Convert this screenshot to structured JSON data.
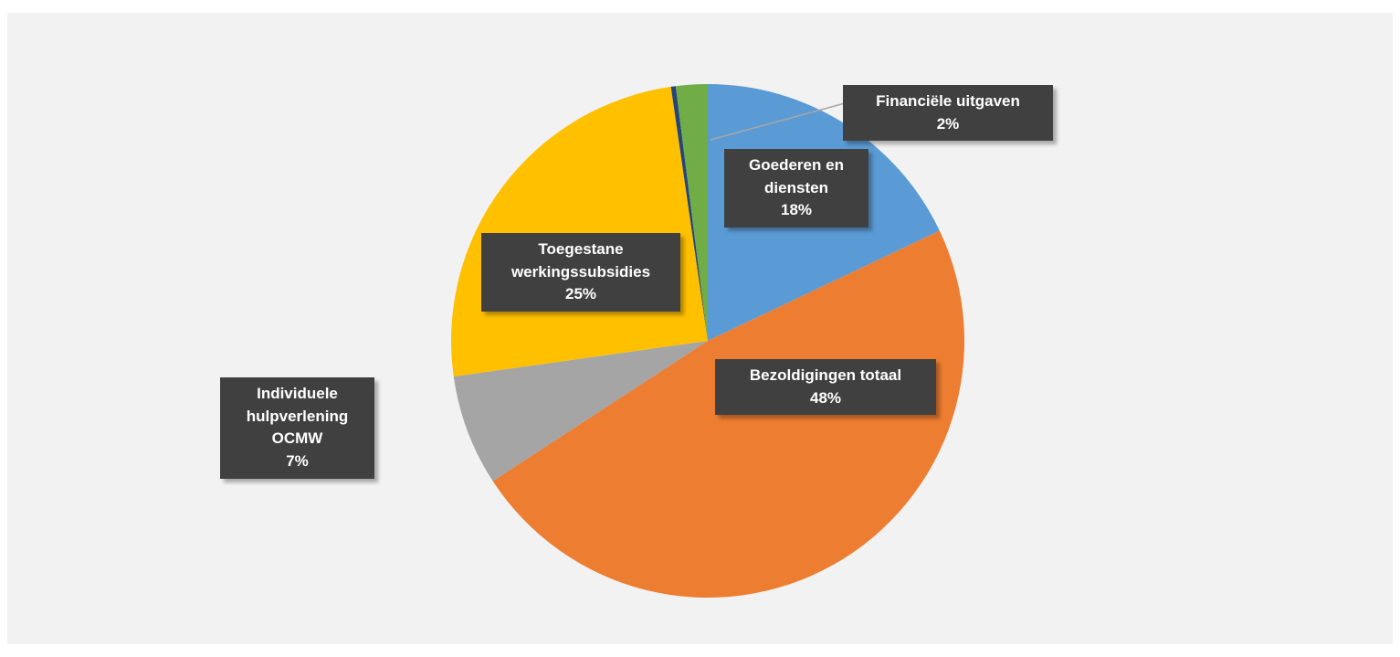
{
  "chart_data": {
    "type": "pie",
    "categories": [
      "Goederen en diensten",
      "Bezoldigingen totaal",
      "Individuele hulpverlening OCMW",
      "Toegestane werkingssubsidies",
      null,
      "Financiële uitgaven"
    ],
    "values": [
      18,
      48,
      7,
      25,
      0.3,
      2
    ],
    "value_labels": [
      "18%",
      "48%",
      "7%",
      "25%",
      null,
      "2%"
    ],
    "colors": [
      "#5b9bd5",
      "#ed7d31",
      "#a5a5a5",
      "#ffc000",
      "#264478",
      "#70ad47"
    ]
  }
}
